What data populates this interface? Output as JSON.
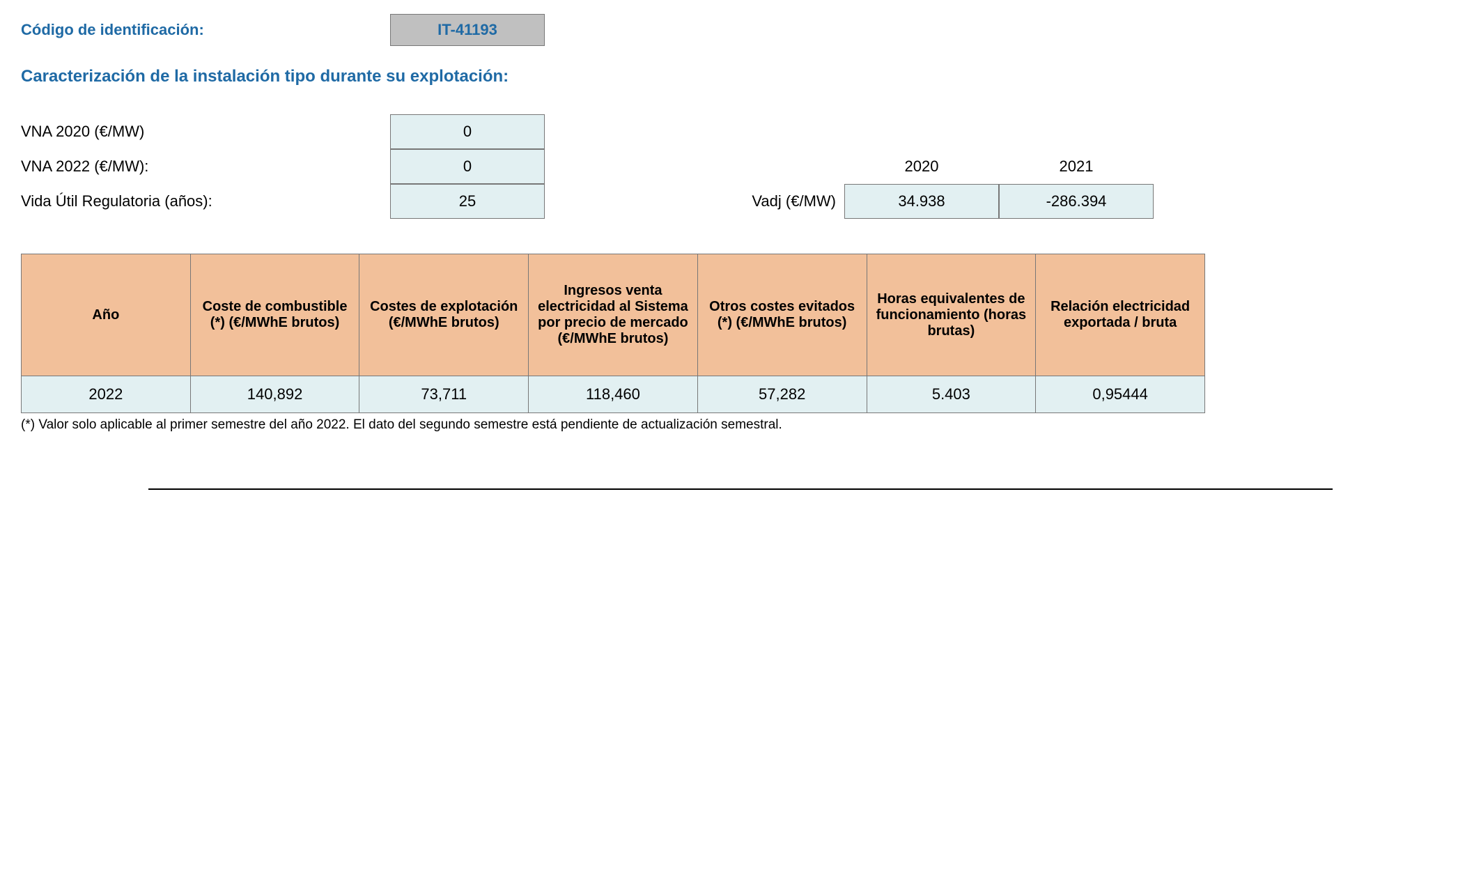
{
  "header": {
    "code_label": "Código de identificación:",
    "code_value": "IT-41193",
    "section_title": "Caracterización de la instalación tipo durante su explotación:"
  },
  "params": {
    "vna2020_label": "VNA 2020 (€/MW)",
    "vna2020_value": "0",
    "vna2022_label": "VNA 2022 (€/MW):",
    "vna2022_value": "0",
    "life_label": "Vida Útil Regulatoria (años):",
    "life_value": "25",
    "vadj_label": "Vadj (€/MW)",
    "year_2020": "2020",
    "year_2021": "2021",
    "vadj_2020": "34.938",
    "vadj_2021": "-286.394"
  },
  "table": {
    "columns": [
      "Año",
      "Coste de combustible (*) (€/MWhE brutos)",
      "Costes de explotación (€/MWhE brutos)",
      "Ingresos venta electricidad al Sistema por precio de mercado (€/MWhE brutos)",
      "Otros costes evitados (*) (€/MWhE brutos)",
      "Horas equivalentes de funcionamiento (horas brutas)",
      "Relación electricidad exportada / bruta"
    ],
    "rows": [
      [
        "2022",
        "140,892",
        "73,711",
        "118,460",
        "57,282",
        "5.403",
        "0,95444"
      ]
    ],
    "header_bg": "#f2c09a",
    "row_bg": "#e2f0f2",
    "border_color": "#777777"
  },
  "footnote": "(*) Valor solo aplicable al primer semestre del año 2022. El dato del segundo semestre está pendiente de actualización semestral.",
  "colors": {
    "heading": "#1f6aa5",
    "box_bg": "#e2f0f2",
    "code_bg": "#c0c0c0"
  }
}
